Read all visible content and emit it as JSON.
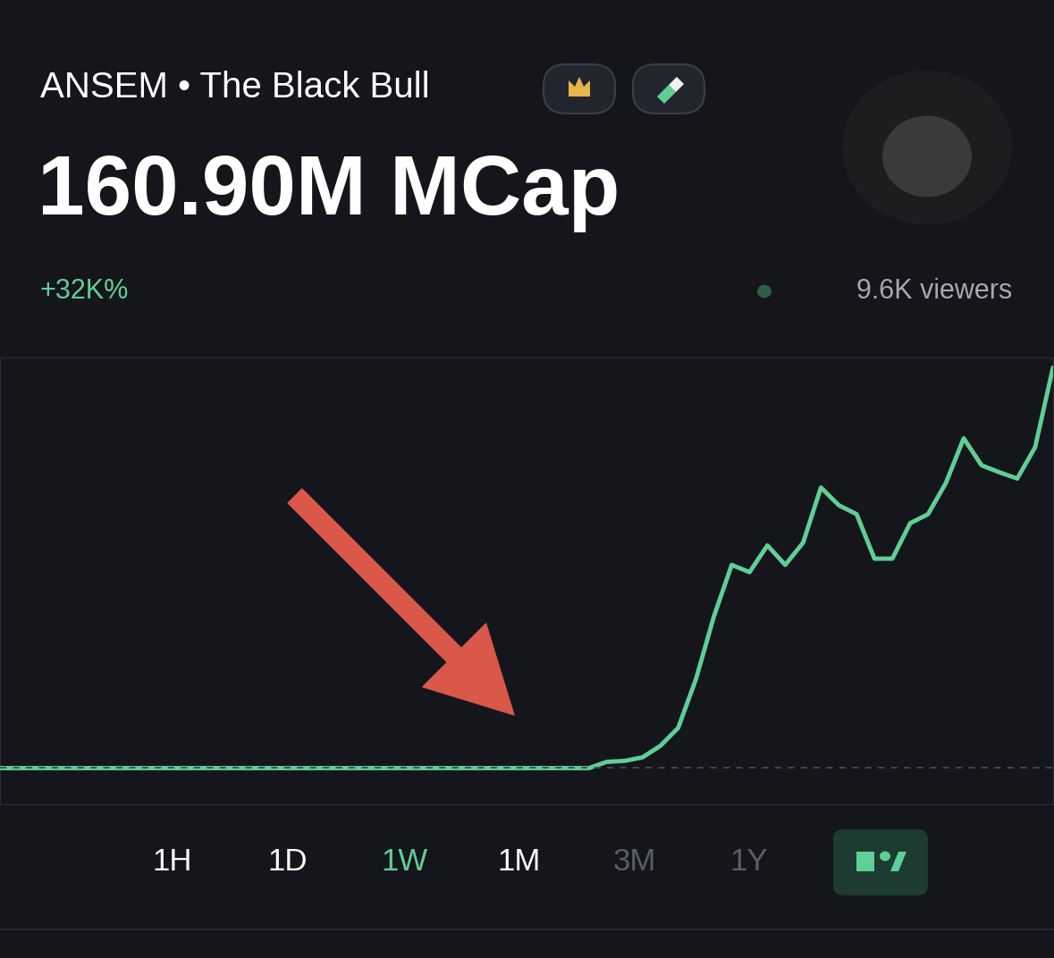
{
  "chart_data": {
    "type": "line",
    "title": "ANSEM • The Black Bull",
    "subtitle": "160.90M MCap",
    "annotations": [
      "+32K%",
      "9.6K viewers"
    ],
    "values": [
      0.5,
      0.5,
      0.5,
      0.5,
      0.5,
      0.5,
      0.5,
      0.5,
      0.5,
      0.5,
      0.5,
      0.5,
      0.5,
      0.5,
      0.5,
      0.5,
      0.5,
      0.5,
      0.5,
      0.5,
      0.5,
      0.5,
      0.5,
      0.5,
      0.5,
      0.5,
      0.5,
      0.5,
      0.5,
      0.5,
      0.5,
      0.5,
      0.5,
      0.5,
      3.0,
      3.4,
      4.8,
      9.4,
      16.6,
      36.2,
      61.2,
      81.9,
      79.0,
      89.7,
      81.9,
      90.8,
      112.9,
      105.8,
      102.2,
      84.4,
      84.4,
      98.6,
      102.2,
      114.7,
      132.6,
      121.8,
      119.0,
      116.5,
      129.0,
      160.9
    ],
    "color": "#5fcf95",
    "xlim": [
      0,
      59
    ],
    "ylim": [
      -14,
      165
    ],
    "tick_labels": false,
    "grid": false
  },
  "controls": {
    "timeframes": [
      "1H",
      "1D",
      "1W",
      "1M",
      "3M",
      "1Y"
    ],
    "active": "1W",
    "disabled": [
      "3M",
      "1Y"
    ]
  }
}
